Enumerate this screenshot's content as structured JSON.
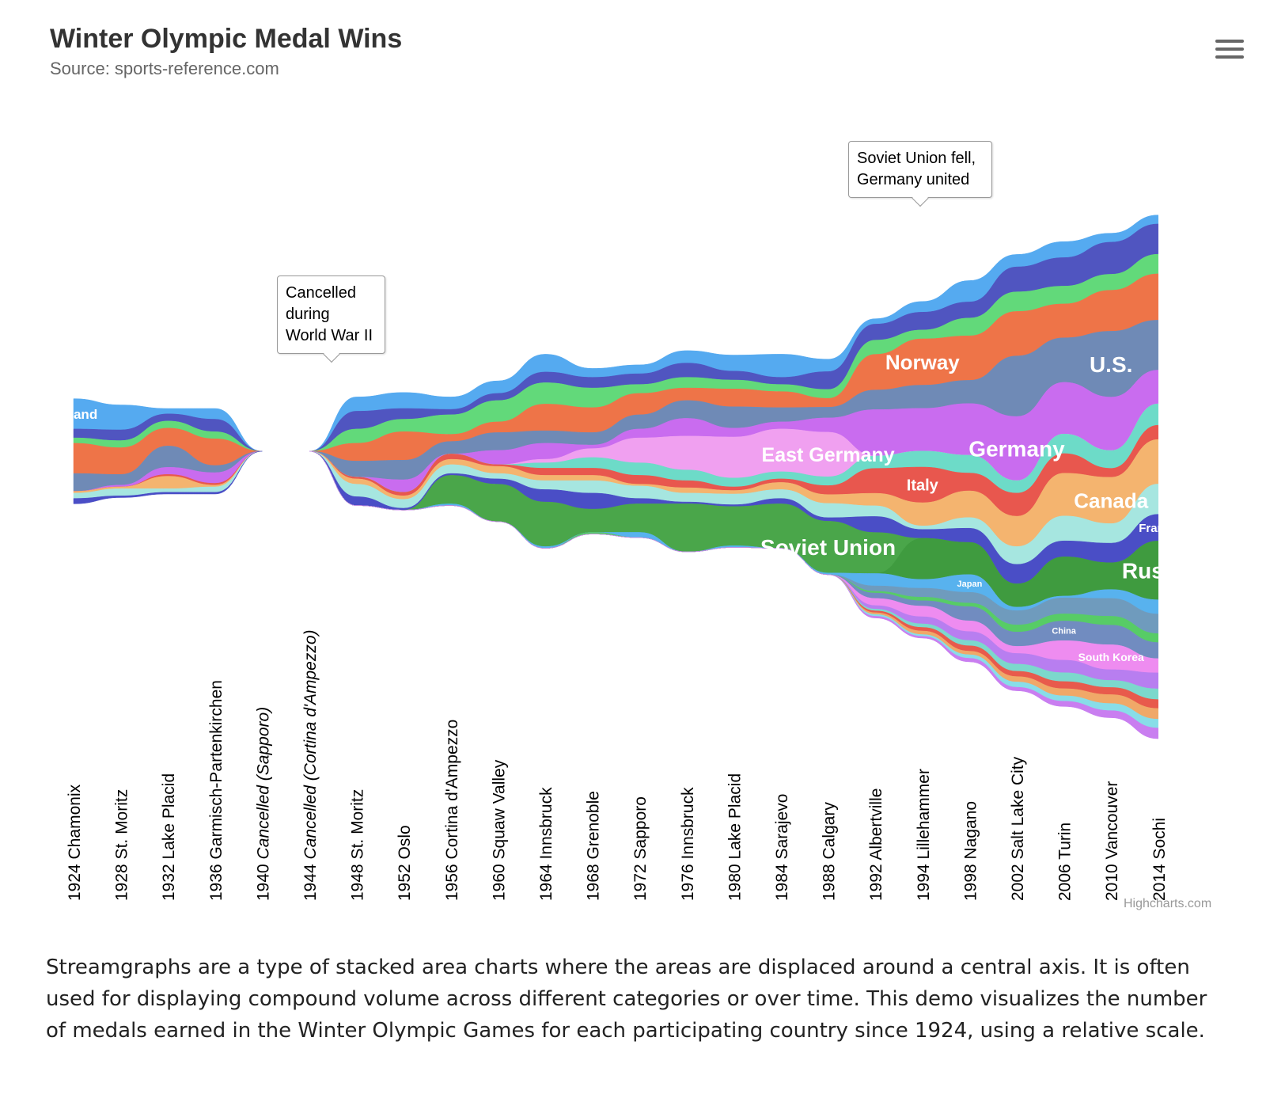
{
  "chart_data": {
    "type": "area",
    "subtype": "streamgraph",
    "title": "Winter Olympic Medal Wins",
    "subtitle": "Source: sports-reference.com",
    "categories": [
      "1924 Chamonix",
      "1928 St. Moritz",
      "1932 Lake Placid",
      "1936 Garmisch-Partenkirchen",
      "1940 Cancelled (Sapporo)",
      "1944 Cancelled (Cortina d'Ampezzo)",
      "1948 St. Moritz",
      "1952 Oslo",
      "1956 Cortina d'Ampezzo",
      "1960 Squaw Valley",
      "1964 Innsbruck",
      "1968 Grenoble",
      "1972 Sapporo",
      "1976 Innsbruck",
      "1980 Lake Placid",
      "1984 Sarajevo",
      "1988 Calgary",
      "1992 Albertville",
      "1994 Lillehammer",
      "1998 Nagano",
      "2002 Salt Lake City",
      "2006 Turin",
      "2010 Vancouver",
      "2014 Sochi"
    ],
    "category_axis": [
      {
        "year": "1924",
        "place": "Chamonix",
        "italic": false
      },
      {
        "year": "1928",
        "place": "St. Moritz",
        "italic": false
      },
      {
        "year": "1932",
        "place": "Lake Placid",
        "italic": false
      },
      {
        "year": "1936",
        "place": "Garmisch-Partenkirchen",
        "italic": false
      },
      {
        "year": "1940",
        "place": "Cancelled (Sapporo)",
        "italic": true
      },
      {
        "year": "1944",
        "place": "Cancelled (Cortina d'Ampezzo)",
        "italic": true
      },
      {
        "year": "1948",
        "place": "St. Moritz",
        "italic": false
      },
      {
        "year": "1952",
        "place": "Oslo",
        "italic": false
      },
      {
        "year": "1956",
        "place": "Cortina d'Ampezzo",
        "italic": false
      },
      {
        "year": "1960",
        "place": "Squaw Valley",
        "italic": false
      },
      {
        "year": "1964",
        "place": "Innsbruck",
        "italic": false
      },
      {
        "year": "1968",
        "place": "Grenoble",
        "italic": false
      },
      {
        "year": "1972",
        "place": "Sapporo",
        "italic": false
      },
      {
        "year": "1976",
        "place": "Innsbruck",
        "italic": false
      },
      {
        "year": "1980",
        "place": "Lake Placid",
        "italic": false
      },
      {
        "year": "1984",
        "place": "Sarajevo",
        "italic": false
      },
      {
        "year": "1988",
        "place": "Calgary",
        "italic": false
      },
      {
        "year": "1992",
        "place": "Albertville",
        "italic": false
      },
      {
        "year": "1994",
        "place": "Lillehammer",
        "italic": false
      },
      {
        "year": "1998",
        "place": "Nagano",
        "italic": false
      },
      {
        "year": "2002",
        "place": "Salt Lake City",
        "italic": false
      },
      {
        "year": "2006",
        "place": "Turin",
        "italic": false
      },
      {
        "year": "2010",
        "place": "Vancouver",
        "italic": false
      },
      {
        "year": "2014",
        "place": "Sochi",
        "italic": false
      }
    ],
    "series": [
      {
        "name": "Finland",
        "color": "#55aaf0",
        "values": [
          17,
          14,
          3,
          6,
          0,
          0,
          8,
          9,
          7,
          7,
          10,
          5,
          5,
          7,
          9,
          13,
          7,
          3,
          6,
          12,
          7,
          9,
          5,
          5
        ]
      },
      {
        "name": "",
        "color": "#5055c0",
        "values": [
          5,
          6,
          4,
          7,
          0,
          0,
          10,
          6,
          3,
          4,
          6,
          6,
          6,
          8,
          5,
          4,
          10,
          9,
          10,
          9,
          14,
          16,
          18,
          17
        ]
      },
      {
        "name": "",
        "color": "#62d97a",
        "values": [
          3,
          4,
          4,
          4,
          0,
          0,
          8,
          7,
          11,
          12,
          12,
          11,
          5,
          6,
          5,
          4,
          5,
          8,
          5,
          10,
          11,
          10,
          9,
          11
        ]
      },
      {
        "name": "Norway",
        "color": "#ee7448",
        "values": [
          17,
          15,
          10,
          15,
          0,
          0,
          10,
          16,
          4,
          6,
          15,
          14,
          12,
          7,
          10,
          9,
          5,
          20,
          26,
          25,
          25,
          19,
          23,
          26
        ]
      },
      {
        "name": "U.S.",
        "color": "#6f8ab6",
        "values": [
          10,
          6,
          12,
          4,
          0,
          0,
          9,
          11,
          7,
          10,
          7,
          7,
          8,
          10,
          12,
          8,
          6,
          11,
          13,
          13,
          34,
          25,
          37,
          28
        ]
      },
      {
        "name": "Germany",
        "color": "#c96cef",
        "values": [
          0,
          1,
          4,
          6,
          0,
          0,
          0,
          7,
          0,
          8,
          9,
          2,
          5,
          10,
          5,
          4,
          8,
          26,
          24,
          29,
          36,
          29,
          30,
          19
        ]
      },
      {
        "name": "East Germany",
        "color": "#f0a0f0",
        "values": [
          0,
          0,
          0,
          0,
          0,
          0,
          0,
          0,
          0,
          0,
          2,
          5,
          14,
          19,
          23,
          24,
          25,
          0,
          0,
          0,
          0,
          0,
          0,
          0
        ]
      },
      {
        "name": "",
        "color": "#6ddbc8",
        "values": [
          0,
          0,
          0,
          0,
          0,
          0,
          0,
          0,
          0,
          0,
          3,
          6,
          7,
          6,
          5,
          4,
          5,
          7,
          9,
          10,
          7,
          11,
          10,
          12
        ]
      },
      {
        "name": "Italy",
        "color": "#e8574e",
        "values": [
          0,
          0,
          1,
          1,
          0,
          0,
          1,
          2,
          3,
          1,
          4,
          4,
          5,
          4,
          2,
          2,
          5,
          14,
          20,
          10,
          13,
          11,
          5,
          8
        ]
      },
      {
        "name": "Canada",
        "color": "#f4b46f",
        "values": [
          1,
          1,
          7,
          1,
          0,
          0,
          3,
          2,
          3,
          4,
          3,
          3,
          1,
          3,
          2,
          4,
          5,
          7,
          13,
          15,
          17,
          24,
          26,
          25
        ]
      },
      {
        "name": "",
        "color": "#a6e6e0",
        "values": [
          3,
          4,
          2,
          3,
          0,
          0,
          7,
          5,
          5,
          3,
          5,
          7,
          7,
          5,
          6,
          5,
          8,
          6,
          2,
          6,
          10,
          14,
          11,
          17
        ]
      },
      {
        "name": "France",
        "color": "#4a4ec6",
        "values": [
          3,
          1,
          1,
          1,
          0,
          0,
          5,
          1,
          1,
          3,
          7,
          9,
          3,
          1,
          1,
          3,
          2,
          9,
          5,
          8,
          11,
          9,
          11,
          15
        ]
      },
      {
        "name": "Soviet Union",
        "color": "#4aa64a",
        "values": [
          0,
          0,
          0,
          0,
          0,
          0,
          0,
          0,
          16,
          21,
          25,
          13,
          16,
          27,
          22,
          25,
          29,
          23,
          0,
          0,
          0,
          0,
          0,
          0
        ]
      },
      {
        "name": "Russia",
        "color": "#3f9b3f",
        "values": [
          0,
          0,
          0,
          0,
          0,
          0,
          0,
          0,
          0,
          0,
          0,
          0,
          0,
          0,
          0,
          0,
          0,
          0,
          23,
          18,
          13,
          22,
          15,
          33
        ]
      },
      {
        "name": "Japan",
        "color": "#58b2ee",
        "values": [
          0,
          0,
          0,
          0,
          0,
          0,
          0,
          0,
          1,
          0,
          1,
          0,
          3,
          0,
          1,
          0,
          1,
          7,
          5,
          10,
          2,
          1,
          5,
          8
        ]
      },
      {
        "name": "",
        "color": "#6f9bbd",
        "values": [
          0,
          0,
          0,
          0,
          0,
          0,
          0,
          0,
          0,
          0,
          0,
          0,
          0,
          0,
          0,
          0,
          0,
          3,
          5,
          6,
          8,
          9,
          10,
          11
        ]
      },
      {
        "name": "",
        "color": "#57cc66",
        "values": [
          0,
          0,
          0,
          0,
          0,
          0,
          0,
          0,
          0,
          0,
          0,
          1,
          0,
          0,
          0,
          0,
          0,
          1,
          2,
          2,
          4,
          4,
          5,
          5
        ]
      },
      {
        "name": "China",
        "color": "#718cc0",
        "values": [
          0,
          0,
          0,
          0,
          0,
          0,
          0,
          0,
          0,
          0,
          0,
          0,
          0,
          0,
          0,
          0,
          0,
          3,
          3,
          8,
          8,
          11,
          11,
          9
        ]
      },
      {
        "name": "South Korea",
        "color": "#ee8cf0",
        "values": [
          0,
          0,
          0,
          0,
          0,
          0,
          0,
          0,
          0,
          0,
          0,
          0,
          0,
          0,
          0,
          0,
          0,
          4,
          6,
          6,
          4,
          11,
          14,
          8
        ]
      },
      {
        "name": "",
        "color": "#b87ef0",
        "values": [
          0,
          0,
          0,
          0,
          0,
          0,
          0,
          0,
          0,
          0,
          0,
          0,
          0,
          0,
          0,
          0,
          0,
          2,
          4,
          5,
          6,
          7,
          6,
          9
        ]
      },
      {
        "name": "",
        "color": "#7cd8cc",
        "values": [
          0,
          0,
          0,
          0,
          0,
          0,
          0,
          0,
          0,
          0,
          0,
          0,
          0,
          0,
          0,
          0,
          0,
          1,
          2,
          3,
          4,
          5,
          4,
          6
        ]
      },
      {
        "name": "",
        "color": "#e85a4c",
        "values": [
          0,
          0,
          0,
          0,
          0,
          0,
          0,
          0,
          0,
          0,
          0,
          0,
          0,
          0,
          0,
          0,
          0,
          1,
          2,
          3,
          3,
          4,
          4,
          5
        ]
      },
      {
        "name": "",
        "color": "#f0a868",
        "values": [
          0,
          0,
          0,
          0,
          0,
          0,
          0,
          0,
          0,
          0,
          0,
          0,
          0,
          0,
          0,
          0,
          0,
          1,
          2,
          2,
          3,
          4,
          5,
          6
        ]
      },
      {
        "name": "",
        "color": "#88dde8",
        "values": [
          0,
          0,
          0,
          0,
          0,
          0,
          0,
          0,
          0,
          0,
          0,
          0,
          0,
          0,
          0,
          0,
          0,
          1,
          1,
          2,
          3,
          3,
          4,
          5
        ]
      },
      {
        "name": "",
        "color": "#c97ef0",
        "values": [
          0,
          0,
          0,
          0,
          0,
          0,
          0,
          0,
          0,
          0,
          0,
          0,
          0,
          0,
          0,
          0,
          0,
          1,
          1,
          2,
          2,
          3,
          4,
          6
        ]
      }
    ],
    "annotations": [
      {
        "category": "1940 Cancelled (Sapporo)",
        "text": "Cancelled during World War II",
        "lines": [
          "Cancelled",
          "during",
          "World War II"
        ]
      },
      {
        "category": "1992 Albertville",
        "text": "Soviet Union fell, Germany united",
        "lines": [
          "Soviet Union fell,",
          "Germany united"
        ]
      }
    ],
    "xlabel": "",
    "ylabel": "",
    "scale": "relative",
    "legend": "none",
    "grid": false
  },
  "credits": "Highcharts.com",
  "menu": {
    "icon": "hamburger-menu-icon"
  },
  "description": "Streamgraphs are a type of stacked area charts where the areas are displaced around a central axis. It is often used for displaying compound volume across different categories or over time. This demo visualizes the number of medals earned in the Winter Olympic Games for each participating country since 1924, using a relative scale."
}
